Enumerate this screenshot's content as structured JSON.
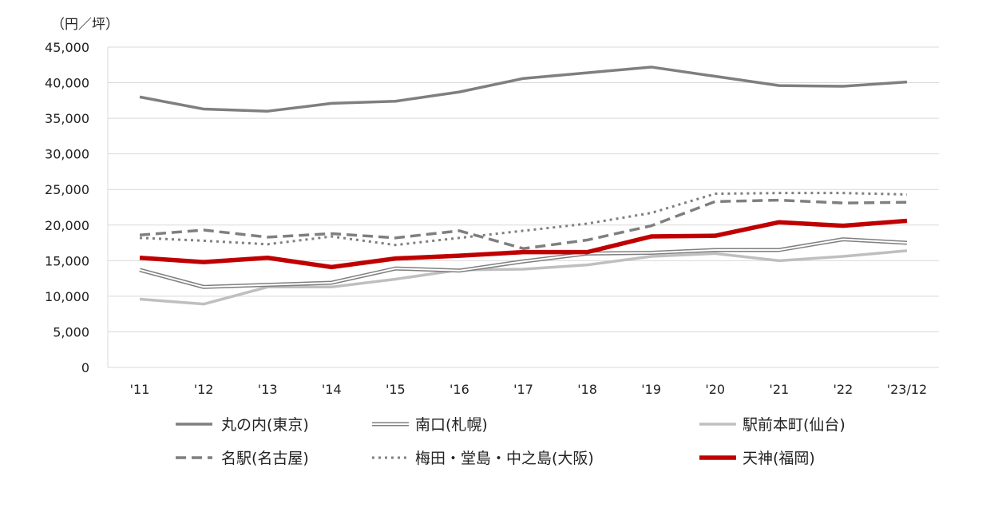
{
  "chart_data": {
    "type": "line",
    "unit_label": "（円／坪）",
    "categories": [
      "'11",
      "'12",
      "'13",
      "'14",
      "'15",
      "'16",
      "'17",
      "'18",
      "'19",
      "'20",
      "'21",
      "'22",
      "'23/12"
    ],
    "ylim": [
      0,
      45000
    ],
    "yticks": [
      0,
      5000,
      10000,
      15000,
      20000,
      25000,
      30000,
      35000,
      40000,
      45000
    ],
    "ytick_labels": [
      "0",
      "5,000",
      "10,000",
      "15,000",
      "20,000",
      "25,000",
      "30,000",
      "35,000",
      "40,000",
      "45,000"
    ],
    "grid": true,
    "legend_position": "bottom",
    "series": [
      {
        "name": "丸の内(東京)",
        "style": "solid",
        "color": "#7f7f7f",
        "values": [
          38000,
          36300,
          36000,
          37100,
          37400,
          38700,
          40600,
          41400,
          42200,
          40900,
          39600,
          39500,
          40100
        ]
      },
      {
        "name": "南口(札幌)",
        "style": "double",
        "color": "#7f7f7f",
        "values": [
          13700,
          11300,
          11600,
          11900,
          13900,
          13600,
          14900,
          16000,
          16100,
          16500,
          16500,
          18000,
          17500
        ]
      },
      {
        "name": "駅前本町(仙台)",
        "style": "solid-light",
        "color": "#bfbfbf",
        "values": [
          9600,
          8900,
          11300,
          11300,
          12400,
          13700,
          13800,
          14400,
          15600,
          16000,
          15000,
          15600,
          16400
        ]
      },
      {
        "name": "名駅(名古屋)",
        "style": "dashed",
        "color": "#7f7f7f",
        "values": [
          18600,
          19300,
          18300,
          18800,
          18200,
          19200,
          16700,
          17900,
          19900,
          23300,
          23500,
          23100,
          23200
        ]
      },
      {
        "name": "梅田・堂島・中之島(大阪)",
        "style": "dotted",
        "color": "#7f7f7f",
        "values": [
          18200,
          17800,
          17300,
          18400,
          17200,
          18200,
          19200,
          20200,
          21700,
          24400,
          24500,
          24500,
          24300
        ]
      },
      {
        "name": "天神(福岡)",
        "style": "thick",
        "color": "#c00000",
        "values": [
          15400,
          14800,
          15400,
          14100,
          15300,
          15700,
          16200,
          16200,
          18400,
          18500,
          20400,
          19900,
          20600
        ]
      }
    ]
  }
}
